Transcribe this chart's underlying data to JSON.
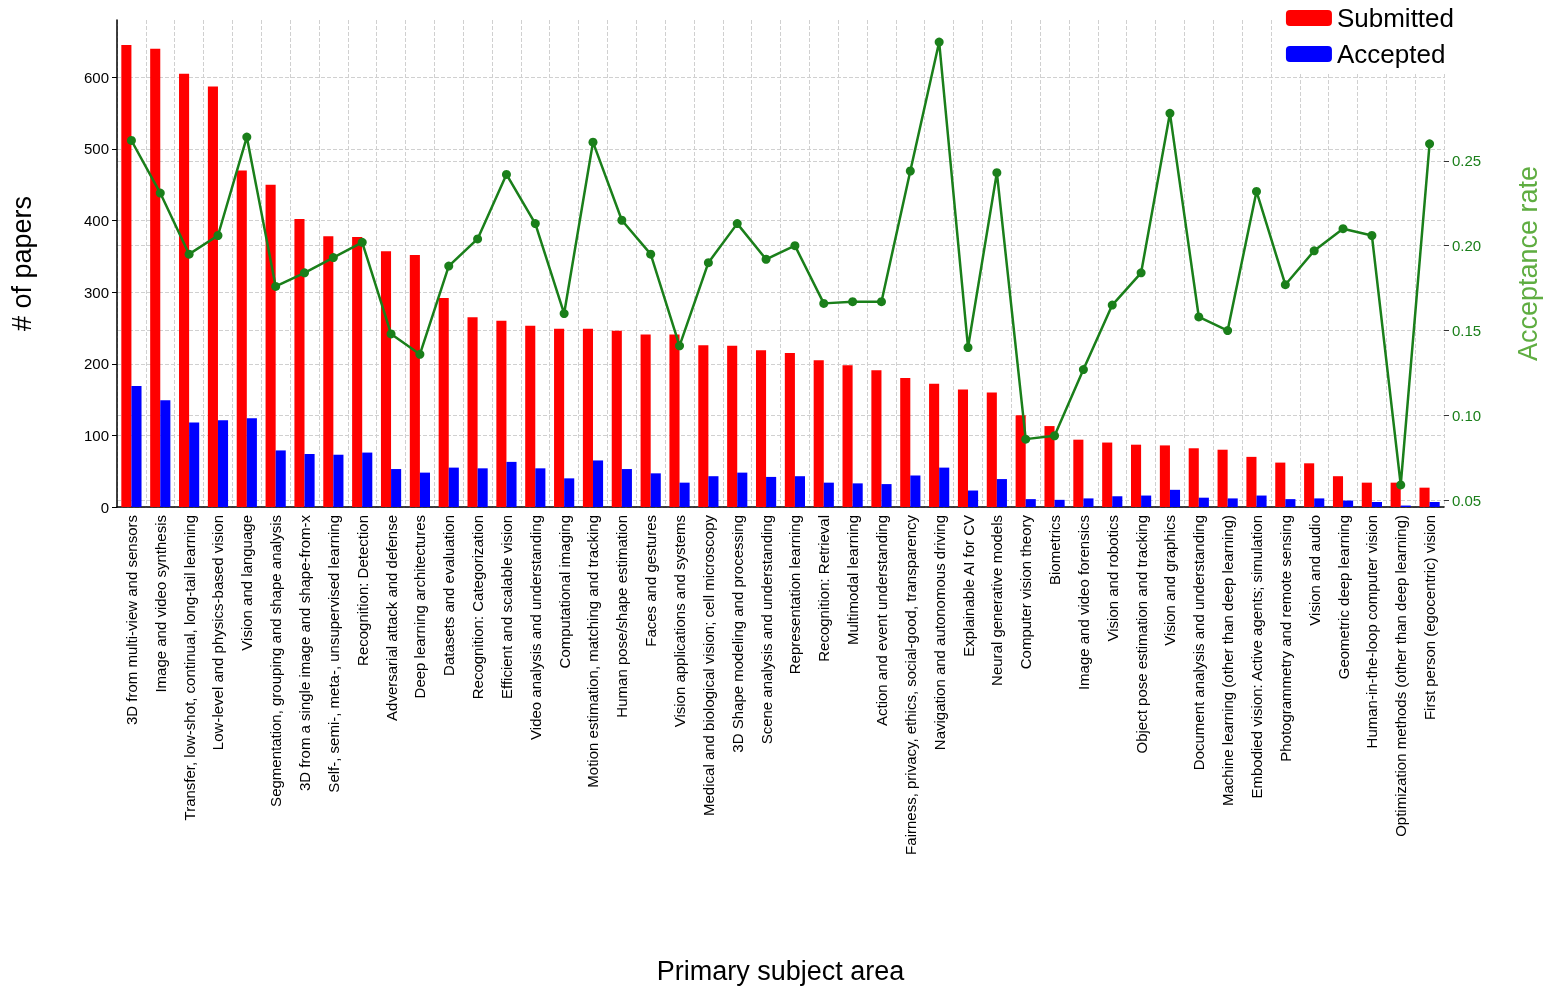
{
  "chart_data": {
    "type": "bar",
    "xlabel": "Primary subject area",
    "ylabel": "# of papers",
    "y2label": "Acceptance rate",
    "categories": [
      "3D from multi-view and sensors",
      "Image and video synthesis",
      "Transfer, low-shot, continual, long-tail learning",
      "Low-level and physics-based vision",
      "Vision and language",
      "Segmentation, grouping and shape analysis",
      "3D from a single image and shape-from-x",
      "Self-, semi-, meta-, unsupervised learning",
      "Recognition: Detection",
      "Adversarial attack and defense",
      "Deep learning architectures",
      "Datasets and evaluation",
      "Recognition: Categorization",
      "Efficient and scalable vision",
      "Video analysis and understanding",
      "Computational imaging",
      "Motion estimation, matching and tracking",
      "Human pose/shape estimation",
      "Faces and gestures",
      "Vision applications and systems",
      "Medical and biological vision; cell microscopy",
      "3D Shape modeling and processing",
      "Scene analysis and understanding",
      "Representation learning",
      "Recognition: Retrieval",
      "Multimodal learning",
      "Action and event understanding",
      "Fairness, privacy, ethics, social-good, transparency",
      "Navigation and autonomous driving",
      "Explainable AI for CV",
      "Neural generative models",
      "Computer vision theory",
      "Biometrics",
      "Image and video forensics",
      "Vision and robotics",
      "Object pose estimation and tracking",
      "Vision and graphics",
      "Document analysis and understanding",
      "Machine learning (other than deep learning)",
      "Embodied vision: Active agents; simulation",
      "Photogrammetry and remote sensing",
      "Vision and audio",
      "Geometric deep learning",
      "Human-in-the-loop computer vision",
      "Optimization methods (other than deep learning)",
      "First person (egocentric) vision"
    ],
    "series": [
      {
        "name": "Submitted",
        "color": "#ff0000",
        "values": [
          645,
          640,
          605,
          587,
          470,
          450,
          402,
          378,
          377,
          357,
          352,
          292,
          265,
          260,
          253,
          249,
          249,
          246,
          241,
          241,
          226,
          225,
          219,
          215,
          205,
          198,
          191,
          180,
          172,
          164,
          160,
          128,
          113,
          94,
          90,
          87,
          86,
          82,
          80,
          70,
          62,
          61,
          43,
          34,
          34,
          27
        ]
      },
      {
        "name": "Accepted",
        "color": "#0000ff",
        "values": [
          169,
          149,
          118,
          121,
          124,
          79,
          74,
          73,
          76,
          53,
          48,
          55,
          54,
          63,
          54,
          40,
          65,
          53,
          47,
          34,
          43,
          48,
          42,
          43,
          34,
          33,
          32,
          44,
          55,
          23,
          39,
          11,
          10,
          12,
          15,
          16,
          24,
          13,
          12,
          16,
          11,
          12,
          9,
          7,
          2,
          7
        ]
      },
      {
        "type": "line",
        "axis": "y2",
        "color": "#1a7f1a",
        "marker": "circle",
        "values": [
          0.262,
          0.231,
          0.195,
          0.206,
          0.264,
          0.176,
          0.184,
          0.193,
          0.202,
          0.148,
          0.136,
          0.188,
          0.204,
          0.242,
          0.213,
          0.16,
          0.261,
          0.215,
          0.195,
          0.141,
          0.19,
          0.213,
          0.192,
          0.2,
          0.166,
          0.167,
          0.167,
          0.244,
          0.32,
          0.14,
          0.243,
          0.086,
          0.088,
          0.127,
          0.165,
          0.184,
          0.278,
          0.158,
          0.15,
          0.232,
          0.177,
          0.197,
          0.21,
          0.206,
          0.059,
          0.26
        ]
      }
    ],
    "ylim": [
      0,
      680
    ],
    "yticks": [
      0,
      100,
      200,
      300,
      400,
      500,
      600
    ],
    "y2lim": [
      0.046,
      0.333
    ],
    "y2ticks": [
      0.05,
      {
        "value": 0.1,
        "label": "0.10"
      },
      0.15,
      {
        "value": 0.2,
        "label": "0.20"
      },
      0.25
    ],
    "grid": true,
    "legend": "top right"
  }
}
